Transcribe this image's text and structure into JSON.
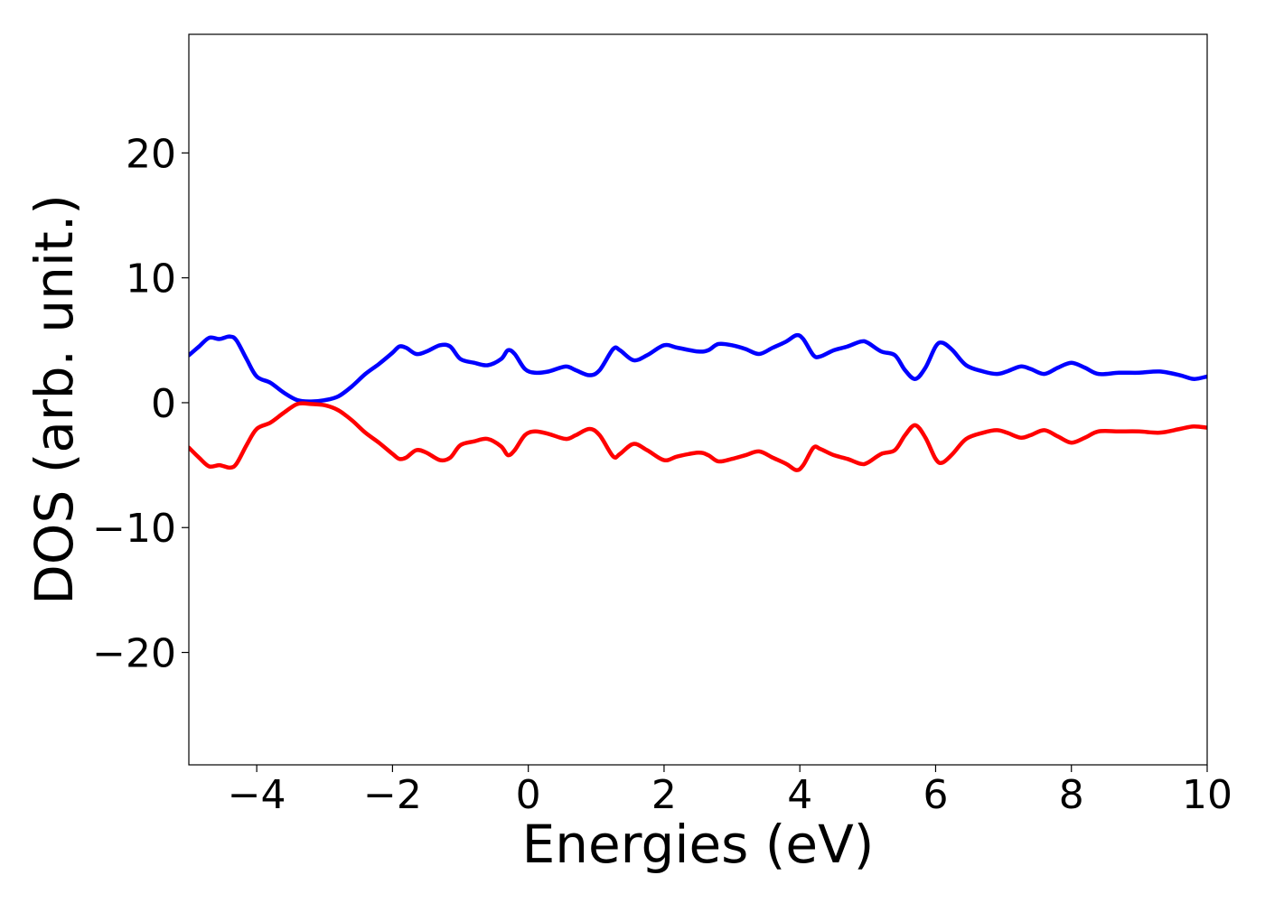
{
  "chart_data": {
    "type": "line",
    "xlabel": "Energies (eV)",
    "ylabel": "DOS (arb. unit.)",
    "xlim": [
      -5,
      10
    ],
    "ylim": [
      -29,
      29.5
    ],
    "xticks": [
      -4,
      -2,
      0,
      2,
      4,
      6,
      8,
      10
    ],
    "xtick_labels": [
      "−4",
      "−2",
      "0",
      "2",
      "4",
      "6",
      "8",
      "10"
    ],
    "yticks": [
      -20,
      -10,
      0,
      10,
      20
    ],
    "ytick_labels": [
      "−20",
      "−10",
      "0",
      "10",
      "20"
    ],
    "grid": false,
    "series": [
      {
        "color": "#0000ff",
        "points": [
          [
            -5.0,
            3.8
          ],
          [
            -4.85,
            4.5
          ],
          [
            -4.7,
            5.2
          ],
          [
            -4.55,
            5.1
          ],
          [
            -4.4,
            5.3
          ],
          [
            -4.3,
            5.0
          ],
          [
            -4.15,
            3.5
          ],
          [
            -4.0,
            2.1
          ],
          [
            -3.8,
            1.6
          ],
          [
            -3.6,
            0.8
          ],
          [
            -3.4,
            0.2
          ],
          [
            -3.2,
            0.1
          ],
          [
            -3.0,
            0.2
          ],
          [
            -2.8,
            0.5
          ],
          [
            -2.6,
            1.3
          ],
          [
            -2.4,
            2.3
          ],
          [
            -2.2,
            3.1
          ],
          [
            -2.0,
            4.0
          ],
          [
            -1.9,
            4.5
          ],
          [
            -1.8,
            4.4
          ],
          [
            -1.65,
            3.9
          ],
          [
            -1.5,
            4.1
          ],
          [
            -1.3,
            4.6
          ],
          [
            -1.15,
            4.5
          ],
          [
            -1.0,
            3.5
          ],
          [
            -0.8,
            3.2
          ],
          [
            -0.6,
            3.0
          ],
          [
            -0.4,
            3.5
          ],
          [
            -0.3,
            4.2
          ],
          [
            -0.2,
            3.9
          ],
          [
            -0.05,
            2.7
          ],
          [
            0.1,
            2.4
          ],
          [
            0.3,
            2.5
          ],
          [
            0.55,
            2.9
          ],
          [
            0.7,
            2.6
          ],
          [
            0.9,
            2.2
          ],
          [
            1.05,
            2.6
          ],
          [
            1.25,
            4.3
          ],
          [
            1.35,
            4.2
          ],
          [
            1.55,
            3.4
          ],
          [
            1.75,
            3.8
          ],
          [
            2.0,
            4.6
          ],
          [
            2.2,
            4.4
          ],
          [
            2.5,
            4.1
          ],
          [
            2.65,
            4.2
          ],
          [
            2.8,
            4.7
          ],
          [
            3.0,
            4.6
          ],
          [
            3.2,
            4.3
          ],
          [
            3.4,
            3.9
          ],
          [
            3.6,
            4.4
          ],
          [
            3.8,
            4.9
          ],
          [
            3.95,
            5.4
          ],
          [
            4.05,
            5.1
          ],
          [
            4.2,
            3.8
          ],
          [
            4.3,
            3.7
          ],
          [
            4.5,
            4.2
          ],
          [
            4.7,
            4.5
          ],
          [
            4.9,
            4.9
          ],
          [
            5.0,
            4.8
          ],
          [
            5.2,
            4.1
          ],
          [
            5.4,
            3.8
          ],
          [
            5.55,
            2.6
          ],
          [
            5.7,
            1.9
          ],
          [
            5.85,
            2.8
          ],
          [
            6.0,
            4.5
          ],
          [
            6.1,
            4.8
          ],
          [
            6.25,
            4.2
          ],
          [
            6.45,
            3.0
          ],
          [
            6.7,
            2.5
          ],
          [
            6.9,
            2.3
          ],
          [
            7.05,
            2.5
          ],
          [
            7.25,
            2.9
          ],
          [
            7.4,
            2.7
          ],
          [
            7.6,
            2.3
          ],
          [
            7.8,
            2.8
          ],
          [
            8.0,
            3.2
          ],
          [
            8.2,
            2.8
          ],
          [
            8.4,
            2.3
          ],
          [
            8.7,
            2.4
          ],
          [
            9.0,
            2.4
          ],
          [
            9.3,
            2.5
          ],
          [
            9.6,
            2.2
          ],
          [
            9.8,
            1.9
          ],
          [
            10.0,
            2.1
          ]
        ]
      },
      {
        "color": "#ff0000",
        "points": [
          [
            -5.0,
            -3.6
          ],
          [
            -4.85,
            -4.4
          ],
          [
            -4.7,
            -5.1
          ],
          [
            -4.55,
            -5.0
          ],
          [
            -4.4,
            -5.2
          ],
          [
            -4.3,
            -4.9
          ],
          [
            -4.15,
            -3.4
          ],
          [
            -4.0,
            -2.1
          ],
          [
            -3.8,
            -1.6
          ],
          [
            -3.6,
            -0.8
          ],
          [
            -3.4,
            -0.1
          ],
          [
            -3.2,
            -0.1
          ],
          [
            -3.0,
            -0.2
          ],
          [
            -2.8,
            -0.6
          ],
          [
            -2.6,
            -1.4
          ],
          [
            -2.4,
            -2.4
          ],
          [
            -2.2,
            -3.2
          ],
          [
            -2.0,
            -4.1
          ],
          [
            -1.9,
            -4.5
          ],
          [
            -1.8,
            -4.4
          ],
          [
            -1.65,
            -3.8
          ],
          [
            -1.5,
            -4.0
          ],
          [
            -1.3,
            -4.6
          ],
          [
            -1.15,
            -4.4
          ],
          [
            -1.0,
            -3.4
          ],
          [
            -0.8,
            -3.1
          ],
          [
            -0.6,
            -2.9
          ],
          [
            -0.4,
            -3.5
          ],
          [
            -0.3,
            -4.2
          ],
          [
            -0.2,
            -3.8
          ],
          [
            -0.05,
            -2.6
          ],
          [
            0.1,
            -2.3
          ],
          [
            0.3,
            -2.5
          ],
          [
            0.55,
            -2.9
          ],
          [
            0.7,
            -2.6
          ],
          [
            0.9,
            -2.1
          ],
          [
            1.05,
            -2.6
          ],
          [
            1.25,
            -4.3
          ],
          [
            1.35,
            -4.1
          ],
          [
            1.55,
            -3.3
          ],
          [
            1.75,
            -3.8
          ],
          [
            2.0,
            -4.6
          ],
          [
            2.2,
            -4.3
          ],
          [
            2.5,
            -4.0
          ],
          [
            2.65,
            -4.2
          ],
          [
            2.8,
            -4.7
          ],
          [
            3.0,
            -4.5
          ],
          [
            3.2,
            -4.2
          ],
          [
            3.4,
            -3.9
          ],
          [
            3.6,
            -4.4
          ],
          [
            3.8,
            -4.9
          ],
          [
            3.95,
            -5.4
          ],
          [
            4.05,
            -5.0
          ],
          [
            4.2,
            -3.6
          ],
          [
            4.3,
            -3.7
          ],
          [
            4.5,
            -4.2
          ],
          [
            4.7,
            -4.5
          ],
          [
            4.9,
            -4.9
          ],
          [
            5.0,
            -4.8
          ],
          [
            5.2,
            -4.1
          ],
          [
            5.4,
            -3.8
          ],
          [
            5.55,
            -2.6
          ],
          [
            5.7,
            -1.8
          ],
          [
            5.85,
            -2.8
          ],
          [
            6.0,
            -4.5
          ],
          [
            6.1,
            -4.8
          ],
          [
            6.25,
            -4.1
          ],
          [
            6.45,
            -2.9
          ],
          [
            6.7,
            -2.4
          ],
          [
            6.9,
            -2.2
          ],
          [
            7.05,
            -2.4
          ],
          [
            7.25,
            -2.8
          ],
          [
            7.4,
            -2.6
          ],
          [
            7.6,
            -2.2
          ],
          [
            7.8,
            -2.7
          ],
          [
            8.0,
            -3.2
          ],
          [
            8.2,
            -2.8
          ],
          [
            8.4,
            -2.3
          ],
          [
            8.7,
            -2.3
          ],
          [
            9.0,
            -2.3
          ],
          [
            9.3,
            -2.4
          ],
          [
            9.6,
            -2.1
          ],
          [
            9.8,
            -1.9
          ],
          [
            10.0,
            -2.0
          ]
        ]
      }
    ]
  }
}
